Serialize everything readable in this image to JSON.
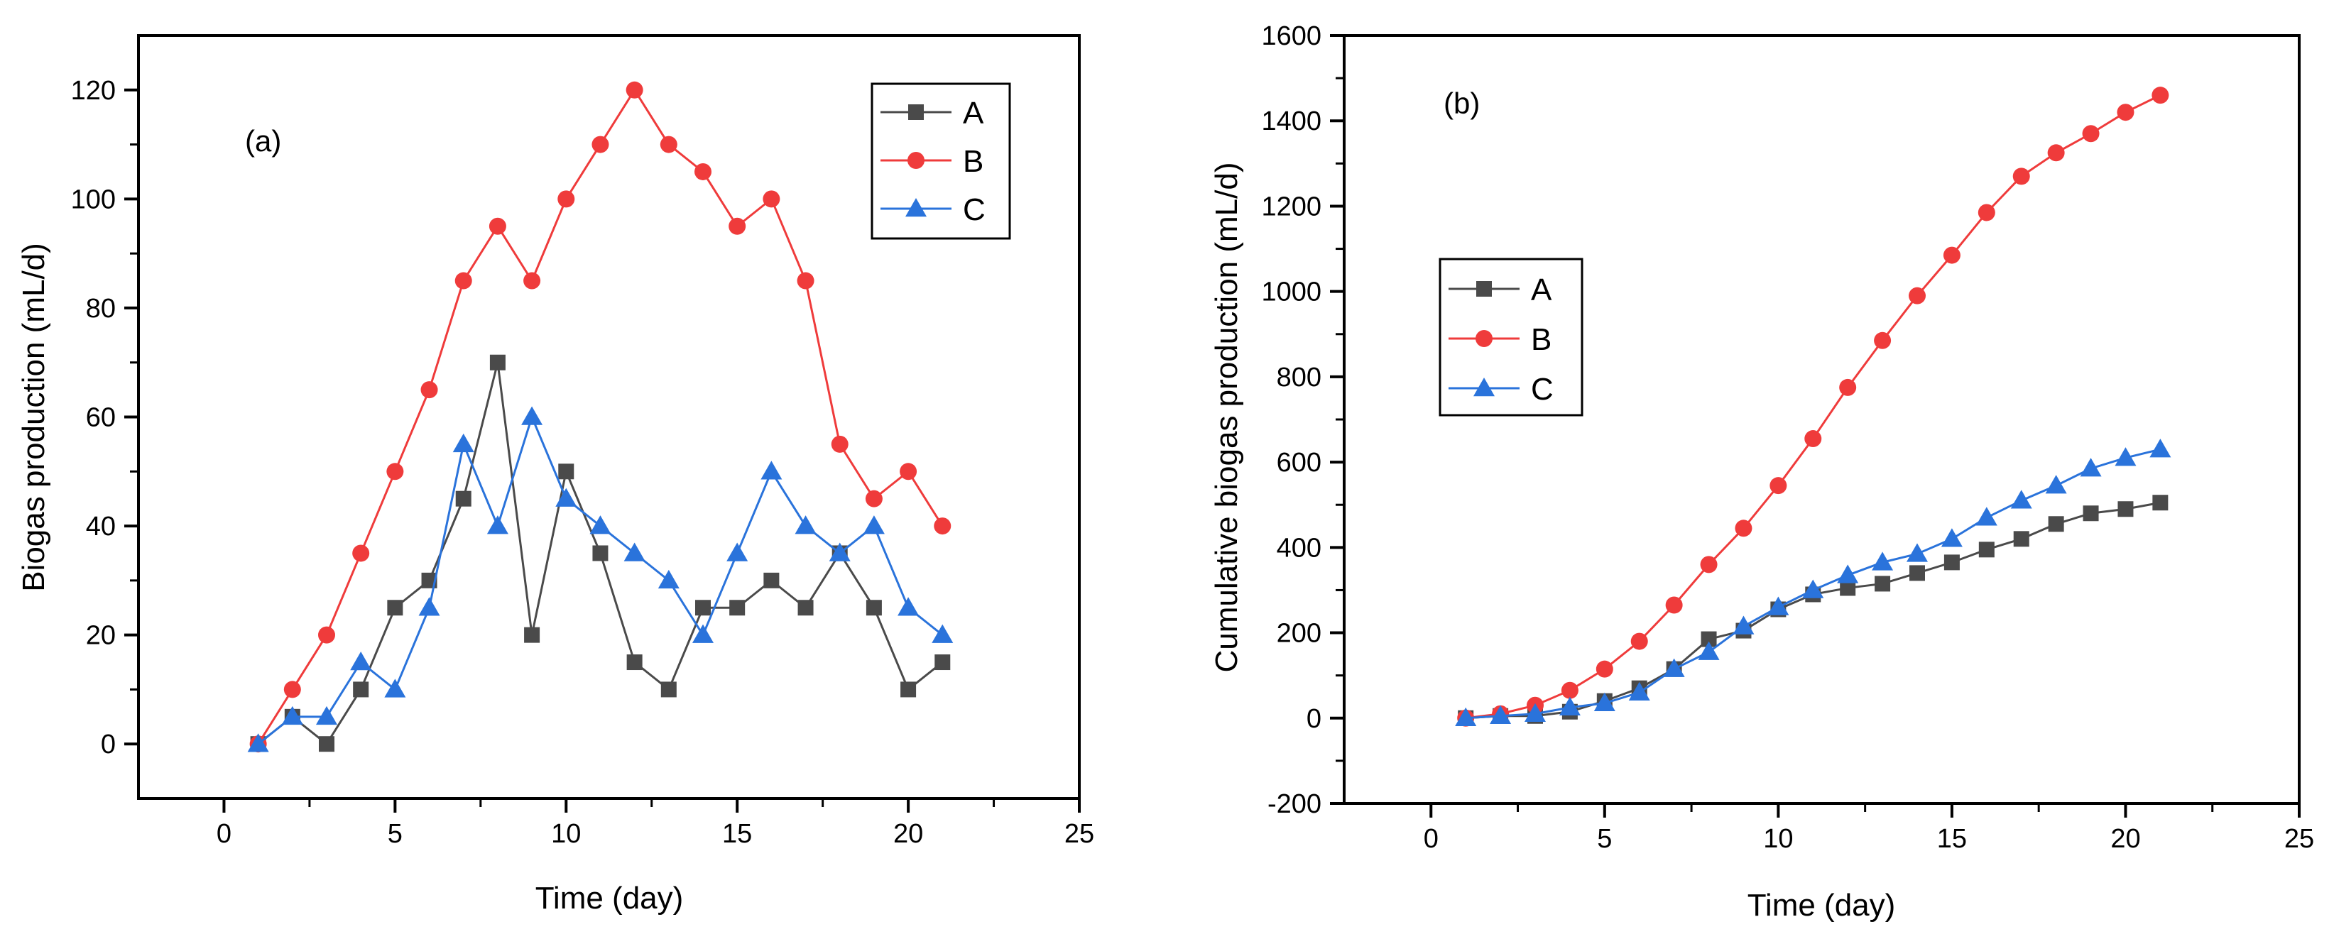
{
  "colors": {
    "A": "#4a4a4a",
    "B": "#ef3b3b",
    "C": "#2a73db",
    "axis": "#000000"
  },
  "chart_data": [
    {
      "type": "line",
      "panel_label": "(a)",
      "title": "",
      "xlabel": "Time (day)",
      "ylabel": "Biogas production (mL/d)",
      "xlim": [
        -2.5,
        25
      ],
      "ylim": [
        -10,
        130
      ],
      "xticks": [
        0,
        5,
        10,
        15,
        20,
        25
      ],
      "yticks": [
        0,
        20,
        40,
        60,
        80,
        100,
        120
      ],
      "x_tick_labels": [
        "0",
        "5",
        "10",
        "15",
        "20",
        "25"
      ],
      "y_tick_labels": [
        "0",
        "20",
        "40",
        "60",
        "80",
        "100",
        "120"
      ],
      "grid": false,
      "legend_position": "top-right",
      "x": [
        1,
        2,
        3,
        4,
        5,
        6,
        7,
        8,
        9,
        10,
        11,
        12,
        13,
        14,
        15,
        16,
        17,
        18,
        19,
        20,
        21
      ],
      "series": [
        {
          "name": "A",
          "marker": "square",
          "color_key": "A",
          "values": [
            0,
            5,
            0,
            10,
            25,
            30,
            45,
            70,
            20,
            50,
            35,
            15,
            10,
            25,
            25,
            30,
            25,
            35,
            25,
            10,
            15
          ]
        },
        {
          "name": "B",
          "marker": "circle",
          "color_key": "B",
          "values": [
            0,
            10,
            20,
            35,
            50,
            65,
            85,
            95,
            85,
            100,
            110,
            120,
            110,
            105,
            95,
            100,
            85,
            55,
            45,
            50,
            40
          ]
        },
        {
          "name": "C",
          "marker": "triangle",
          "color_key": "C",
          "values": [
            0,
            5,
            5,
            15,
            10,
            25,
            55,
            40,
            60,
            45,
            40,
            35,
            30,
            20,
            35,
            50,
            40,
            35,
            40,
            25,
            20
          ]
        }
      ]
    },
    {
      "type": "line",
      "panel_label": "(b)",
      "title": "",
      "xlabel": "Time (day)",
      "ylabel": "Cumulative  biogas production (mL/d)",
      "xlim": [
        -2.5,
        25
      ],
      "ylim": [
        -200,
        1600
      ],
      "xticks": [
        0,
        5,
        10,
        15,
        20,
        25
      ],
      "yticks": [
        -200,
        0,
        200,
        400,
        600,
        800,
        1000,
        1200,
        1400,
        1600
      ],
      "x_tick_labels": [
        "0",
        "5",
        "10",
        "15",
        "20",
        "25"
      ],
      "y_tick_labels": [
        "-200",
        "0",
        "200",
        "400",
        "600",
        "800",
        "1000",
        "1200",
        "1400",
        "1600"
      ],
      "grid": false,
      "legend_position": "middle-left",
      "x": [
        1,
        2,
        3,
        4,
        5,
        6,
        7,
        8,
        9,
        10,
        11,
        12,
        13,
        14,
        15,
        16,
        17,
        18,
        19,
        20,
        21
      ],
      "series": [
        {
          "name": "A",
          "marker": "square",
          "color_key": "A",
          "values": [
            0,
            5,
            5,
            15,
            40,
            70,
            115,
            185,
            205,
            255,
            290,
            305,
            315,
            340,
            365,
            395,
            420,
            455,
            480,
            490,
            505
          ]
        },
        {
          "name": "B",
          "marker": "circle",
          "color_key": "B",
          "values": [
            0,
            10,
            30,
            65,
            115,
            180,
            265,
            360,
            445,
            545,
            655,
            775,
            885,
            990,
            1085,
            1185,
            1270,
            1325,
            1370,
            1420,
            1460
          ]
        },
        {
          "name": "C",
          "marker": "triangle",
          "color_key": "C",
          "values": [
            0,
            5,
            10,
            25,
            35,
            60,
            115,
            155,
            215,
            260,
            300,
            335,
            365,
            385,
            420,
            470,
            510,
            545,
            585,
            610,
            630
          ]
        }
      ]
    }
  ]
}
